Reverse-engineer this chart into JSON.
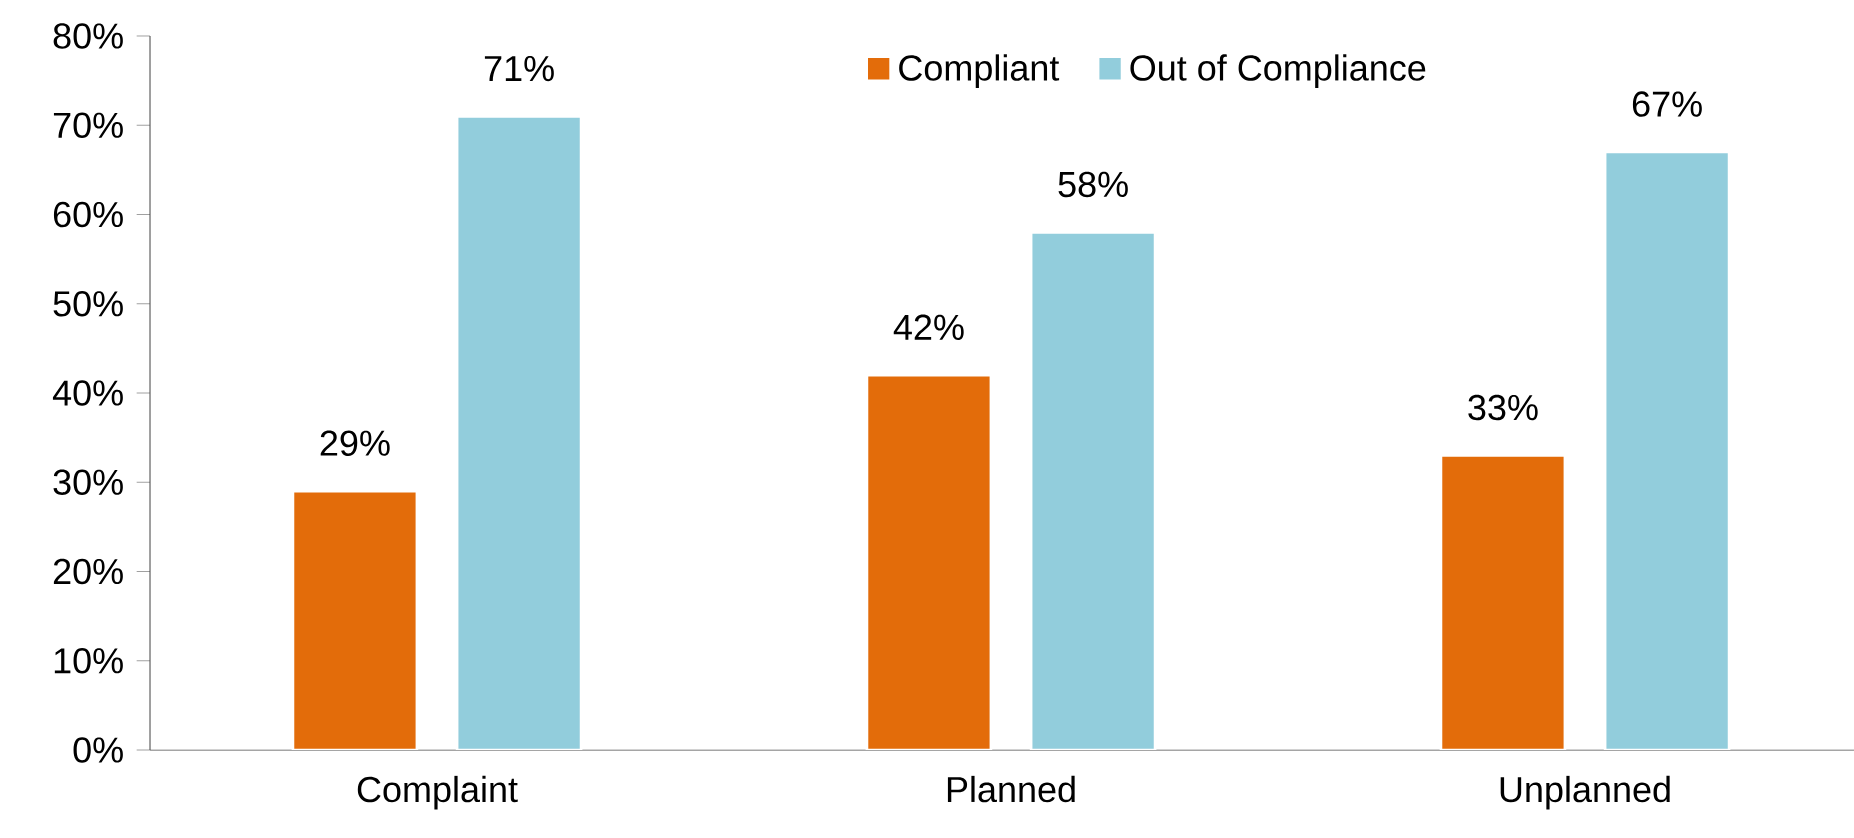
{
  "chart_data": {
    "type": "bar",
    "categories": [
      "Complaint",
      "Planned",
      "Unplanned"
    ],
    "series": [
      {
        "name": "Compliant",
        "color": "#e36c0a",
        "values": [
          29,
          42,
          33
        ],
        "value_labels": [
          "29%",
          "42%",
          "33%"
        ]
      },
      {
        "name": "Out of Compliance",
        "color": "#92cddc",
        "values": [
          71,
          58,
          67
        ],
        "value_labels": [
          "71%",
          "58%",
          "67%"
        ]
      }
    ],
    "ylim": [
      0,
      80
    ],
    "yticks": [
      {
        "value": 0,
        "label": "0%"
      },
      {
        "value": 10,
        "label": "10%"
      },
      {
        "value": 20,
        "label": "20%"
      },
      {
        "value": 30,
        "label": "30%"
      },
      {
        "value": 40,
        "label": "40%"
      },
      {
        "value": 50,
        "label": "50%"
      },
      {
        "value": 60,
        "label": "60%"
      },
      {
        "value": 70,
        "label": "70%"
      },
      {
        "value": 80,
        "label": "80%"
      }
    ],
    "legend": "top"
  }
}
